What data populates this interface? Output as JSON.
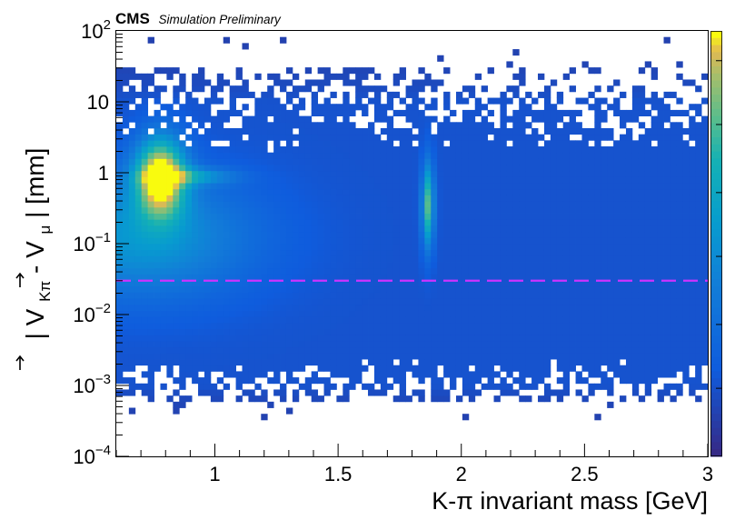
{
  "chart_data": {
    "type": "heatmap",
    "title": "",
    "badge": {
      "experiment": "CMS",
      "status": "Simulation Preliminary"
    },
    "xlabel": "K-π invariant mass [GeV]",
    "ylabel": {
      "bar_open": "|",
      "v1": "V",
      "v1_sub": "Kπ",
      "minus": " - ",
      "v2": "V",
      "v2_sub": "μ",
      "bar_close": "|",
      "unit": " [mm]"
    },
    "x_range": [
      0.6,
      3.0
    ],
    "y_range": [
      0.0001,
      100
    ],
    "y_scale": "log",
    "z_scale": "log",
    "x_ticks": [
      {
        "value": 1.0,
        "label": "1"
      },
      {
        "value": 1.5,
        "label": "1.5"
      },
      {
        "value": 2.0,
        "label": "2"
      },
      {
        "value": 2.5,
        "label": "2.5"
      },
      {
        "value": 3.0,
        "label": "3"
      }
    ],
    "y_ticks": [
      {
        "value": 0.0001,
        "label": "10",
        "exp": "−4"
      },
      {
        "value": 0.001,
        "label": "10",
        "exp": "−3"
      },
      {
        "value": 0.01,
        "label": "10",
        "exp": "−2"
      },
      {
        "value": 0.1,
        "label": "10",
        "exp": "−1"
      },
      {
        "value": 1,
        "label": "1",
        "exp": ""
      },
      {
        "value": 10,
        "label": "10",
        "exp": ""
      },
      {
        "value": 100,
        "label": "10",
        "exp": "2"
      }
    ],
    "features": [
      {
        "name": "K*(892) band",
        "x_center": 0.78,
        "x_width": 0.1,
        "y_peak": 0.9,
        "intensity": "high"
      },
      {
        "name": "D0 peak",
        "x_center": 1.865,
        "x_width": 0.025,
        "y_peak": 0.35,
        "intensity": "medium"
      },
      {
        "name": "combinatorial background",
        "x_range": [
          0.6,
          3.0
        ],
        "y_range": [
          0.001,
          10
        ],
        "intensity": "low"
      }
    ],
    "cut_line": {
      "y": 0.03,
      "color": "#cc33ff",
      "style": "dashed"
    },
    "colormap": "viridis-like (blue to yellow)",
    "grid": false
  }
}
